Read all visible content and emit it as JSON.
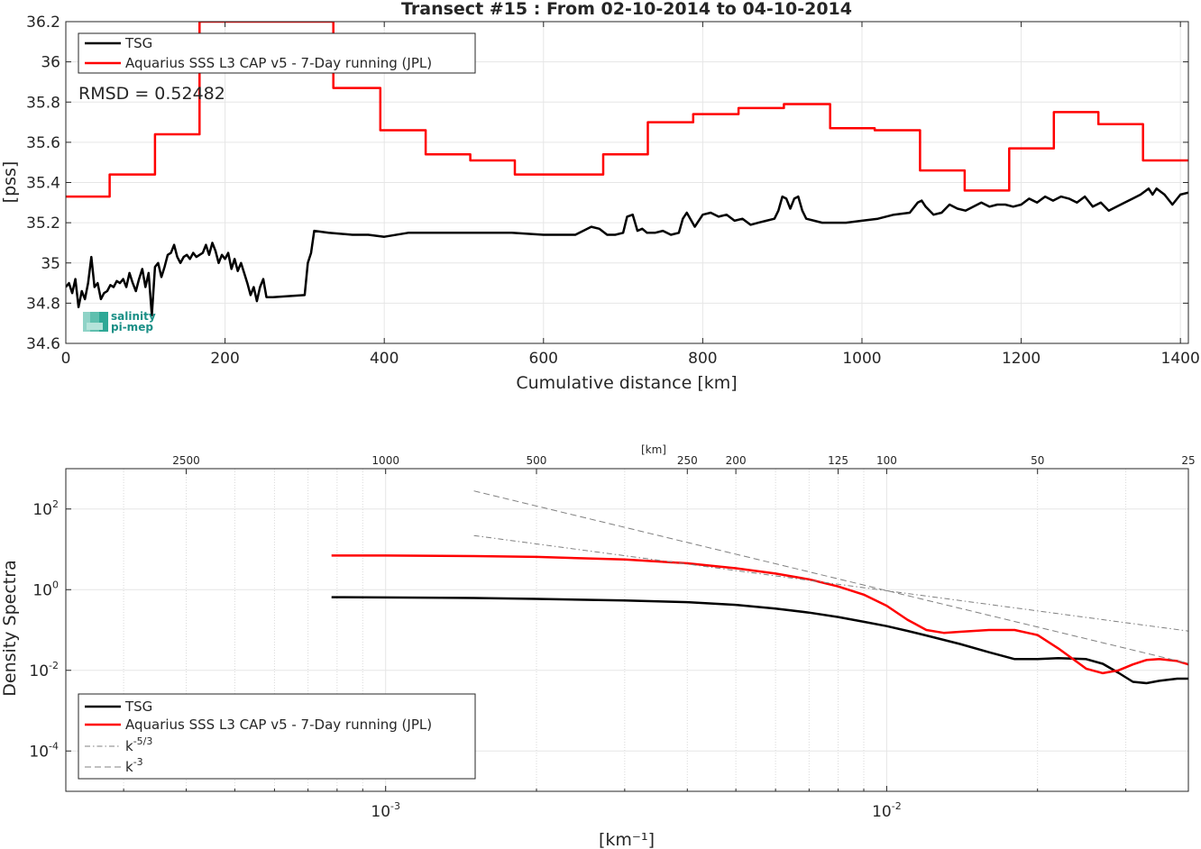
{
  "chart_data": [
    {
      "type": "line",
      "title": "Transect #15 : From 02-10-2014 to 04-10-2014",
      "xlabel": "Cumulative distance [km]",
      "ylabel": "[pss]",
      "xlim": [
        0,
        1410
      ],
      "ylim": [
        34.6,
        36.2
      ],
      "xticks": [
        0,
        200,
        400,
        600,
        800,
        1000,
        1200,
        1400
      ],
      "xtick_labels": [
        "0",
        "200",
        "400",
        "600",
        "800",
        "1000",
        "1200",
        "1400"
      ],
      "yticks": [
        34.6,
        34.8,
        35,
        35.2,
        35.4,
        35.6,
        35.8,
        36,
        36.2
      ],
      "ytick_labels": [
        "34.6",
        "34.8",
        "35",
        "35.2",
        "35.4",
        "35.6",
        "35.8",
        "36",
        "36.2"
      ],
      "grid": true,
      "legend_position": "top-left",
      "annotation": "RMSD = 0.52482",
      "logo_text": [
        "salinity",
        "pi-mep"
      ],
      "series": [
        {
          "name": "TSG",
          "color": "#000000",
          "x": [
            0,
            4,
            8,
            12,
            16,
            20,
            24,
            28,
            32,
            36,
            40,
            44,
            48,
            52,
            56,
            60,
            64,
            68,
            72,
            76,
            80,
            84,
            88,
            92,
            96,
            100,
            104,
            108,
            112,
            116,
            120,
            124,
            128,
            132,
            136,
            140,
            144,
            148,
            152,
            156,
            160,
            164,
            168,
            172,
            176,
            180,
            184,
            188,
            192,
            196,
            200,
            204,
            208,
            212,
            216,
            220,
            224,
            228,
            232,
            236,
            240,
            244,
            248,
            252,
            256,
            260,
            300,
            304,
            308,
            312,
            330,
            360,
            380,
            400,
            430,
            460,
            490,
            520,
            560,
            600,
            640,
            660,
            670,
            680,
            690,
            700,
            705,
            712,
            718,
            724,
            730,
            740,
            750,
            760,
            770,
            775,
            780,
            790,
            800,
            810,
            820,
            830,
            840,
            850,
            860,
            870,
            880,
            890,
            895,
            900,
            905,
            910,
            915,
            920,
            925,
            930,
            940,
            950,
            960,
            980,
            1000,
            1020,
            1040,
            1060,
            1070,
            1075,
            1080,
            1090,
            1100,
            1110,
            1120,
            1130,
            1140,
            1150,
            1160,
            1170,
            1180,
            1190,
            1200,
            1210,
            1220,
            1230,
            1240,
            1250,
            1260,
            1270,
            1280,
            1290,
            1300,
            1310,
            1320,
            1330,
            1340,
            1350,
            1360,
            1365,
            1370,
            1380,
            1390,
            1400,
            1410
          ],
          "y": [
            34.88,
            34.9,
            34.85,
            34.92,
            34.78,
            34.86,
            34.82,
            34.9,
            35.03,
            34.88,
            34.9,
            34.82,
            34.85,
            34.86,
            34.89,
            34.88,
            34.91,
            34.9,
            34.92,
            34.88,
            34.95,
            34.9,
            34.86,
            34.92,
            34.97,
            34.88,
            34.95,
            34.74,
            34.98,
            35.0,
            34.93,
            34.98,
            35.04,
            35.05,
            35.09,
            35.03,
            35.0,
            35.03,
            35.04,
            35.02,
            35.05,
            35.03,
            35.04,
            35.05,
            35.09,
            35.04,
            35.1,
            35.06,
            35.0,
            35.04,
            35.02,
            35.05,
            34.97,
            35.02,
            34.96,
            35.0,
            34.95,
            34.9,
            34.84,
            34.88,
            34.81,
            34.88,
            34.92,
            34.83,
            34.83,
            34.83,
            34.84,
            35.0,
            35.05,
            35.16,
            35.15,
            35.14,
            35.14,
            35.13,
            35.15,
            35.15,
            35.15,
            35.15,
            35.15,
            35.14,
            35.14,
            35.18,
            35.17,
            35.14,
            35.14,
            35.15,
            35.23,
            35.24,
            35.16,
            35.17,
            35.15,
            35.15,
            35.16,
            35.14,
            35.15,
            35.22,
            35.25,
            35.18,
            35.24,
            35.25,
            35.23,
            35.24,
            35.21,
            35.22,
            35.19,
            35.2,
            35.21,
            35.22,
            35.26,
            35.33,
            35.32,
            35.27,
            35.32,
            35.33,
            35.26,
            35.22,
            35.21,
            35.2,
            35.2,
            35.2,
            35.21,
            35.22,
            35.24,
            35.25,
            35.3,
            35.31,
            35.28,
            35.24,
            35.25,
            35.29,
            35.27,
            35.26,
            35.28,
            35.3,
            35.28,
            35.29,
            35.29,
            35.28,
            35.29,
            35.32,
            35.3,
            35.33,
            35.31,
            35.33,
            35.32,
            35.3,
            35.33,
            35.28,
            35.3,
            35.26,
            35.28,
            35.3,
            35.32,
            35.34,
            35.37,
            35.34,
            35.37,
            35.34,
            35.29,
            35.34,
            35.35
          ]
        },
        {
          "name": "Aquarius SSS L3 CAP v5 - 7-Day running (JPL)",
          "color": "#ff0000",
          "x": [
            0,
            55,
            55,
            112,
            112,
            168,
            168,
            336,
            336,
            395,
            395,
            452,
            452,
            508,
            508,
            564,
            564,
            675,
            675,
            731,
            731,
            788,
            788,
            845,
            845,
            902,
            902,
            960,
            960,
            1016,
            1016,
            1073,
            1073,
            1129,
            1129,
            1185,
            1185,
            1241,
            1241,
            1297,
            1297,
            1353,
            1353,
            1410
          ],
          "y": [
            35.33,
            35.33,
            35.44,
            35.44,
            35.64,
            35.64,
            36.2,
            36.2,
            35.87,
            35.87,
            35.66,
            35.66,
            35.54,
            35.54,
            35.51,
            35.51,
            35.44,
            35.44,
            35.54,
            35.54,
            35.7,
            35.7,
            35.74,
            35.74,
            35.77,
            35.77,
            35.79,
            35.79,
            35.67,
            35.67,
            35.66,
            35.66,
            35.46,
            35.46,
            35.36,
            35.36,
            35.57,
            35.57,
            35.75,
            35.75,
            35.69,
            35.69,
            35.51,
            35.51
          ]
        }
      ]
    },
    {
      "type": "line",
      "title": "",
      "xlabel": "[km⁻¹]",
      "ylabel": "Density Spectra",
      "xscale": "log",
      "yscale": "log",
      "xlim": [
        0.00023,
        0.04
      ],
      "ylim": [
        1e-05,
        1000
      ],
      "xticks": [
        0.001,
        0.01
      ],
      "xtick_labels": [
        {
          "base": "10",
          "exp": "-3"
        },
        {
          "base": "10",
          "exp": "-2"
        }
      ],
      "yticks": [
        0.0001,
        0.01,
        1,
        100
      ],
      "ytick_labels": [
        {
          "base": "10",
          "exp": "-4"
        },
        {
          "base": "10",
          "exp": "-2"
        },
        {
          "base": "10",
          "exp": "0"
        },
        {
          "base": "10",
          "exp": "2"
        }
      ],
      "top_axis_label": "[km]",
      "top_ticks": [
        2500,
        1000,
        500,
        250,
        200,
        125,
        100,
        50,
        25
      ],
      "top_tick_labels": [
        "2500",
        "1000",
        "500",
        "250",
        "200",
        "125",
        "100",
        "50",
        "25"
      ],
      "grid": true,
      "legend_position": "bottom-left",
      "series": [
        {
          "name": "TSG",
          "color": "#000000",
          "style": "solid",
          "x": [
            0.00078,
            0.001,
            0.0015,
            0.002,
            0.003,
            0.004,
            0.005,
            0.006,
            0.007,
            0.008,
            0.009,
            0.01,
            0.011,
            0.012,
            0.014,
            0.016,
            0.018,
            0.02,
            0.022,
            0.025,
            0.027,
            0.029,
            0.031,
            0.033,
            0.035,
            0.038,
            0.04
          ],
          "y": [
            0.65,
            0.64,
            0.62,
            0.59,
            0.54,
            0.49,
            0.42,
            0.34,
            0.27,
            0.21,
            0.16,
            0.125,
            0.095,
            0.073,
            0.045,
            0.028,
            0.019,
            0.019,
            0.02,
            0.019,
            0.0145,
            0.0087,
            0.0052,
            0.0048,
            0.0055,
            0.0062,
            0.0062
          ]
        },
        {
          "name": "Aquarius SSS L3 CAP v5 - 7-Day running (JPL)",
          "color": "#ff0000",
          "style": "solid",
          "x": [
            0.00078,
            0.001,
            0.0015,
            0.002,
            0.003,
            0.004,
            0.005,
            0.006,
            0.007,
            0.008,
            0.009,
            0.01,
            0.011,
            0.012,
            0.013,
            0.014,
            0.016,
            0.018,
            0.02,
            0.022,
            0.024,
            0.025,
            0.027,
            0.029,
            0.031,
            0.033,
            0.035,
            0.038,
            0.04
          ],
          "y": [
            7.0,
            7.0,
            6.8,
            6.5,
            5.6,
            4.5,
            3.4,
            2.5,
            1.8,
            1.2,
            0.75,
            0.4,
            0.18,
            0.1,
            0.085,
            0.09,
            0.1,
            0.1,
            0.075,
            0.035,
            0.016,
            0.011,
            0.0085,
            0.01,
            0.014,
            0.018,
            0.019,
            0.017,
            0.014
          ]
        },
        {
          "name": "k⁻⁵″³",
          "color": "#808080",
          "style": "dashdot",
          "x": [
            0.0015,
            0.04
          ],
          "y": [
            22,
            0.094
          ]
        },
        {
          "name": "k⁻³",
          "color": "#808080",
          "style": "dashed",
          "x": [
            0.0015,
            0.04
          ],
          "y": [
            280,
            0.0148
          ]
        }
      ],
      "legend_entries": [
        {
          "label": "TSG",
          "exp": ""
        },
        {
          "label": "Aquarius SSS L3 CAP v5 - 7-Day running (JPL)",
          "exp": ""
        },
        {
          "label": "k",
          "exp": "-5/3"
        },
        {
          "label": "k",
          "exp": "-3"
        }
      ]
    }
  ]
}
